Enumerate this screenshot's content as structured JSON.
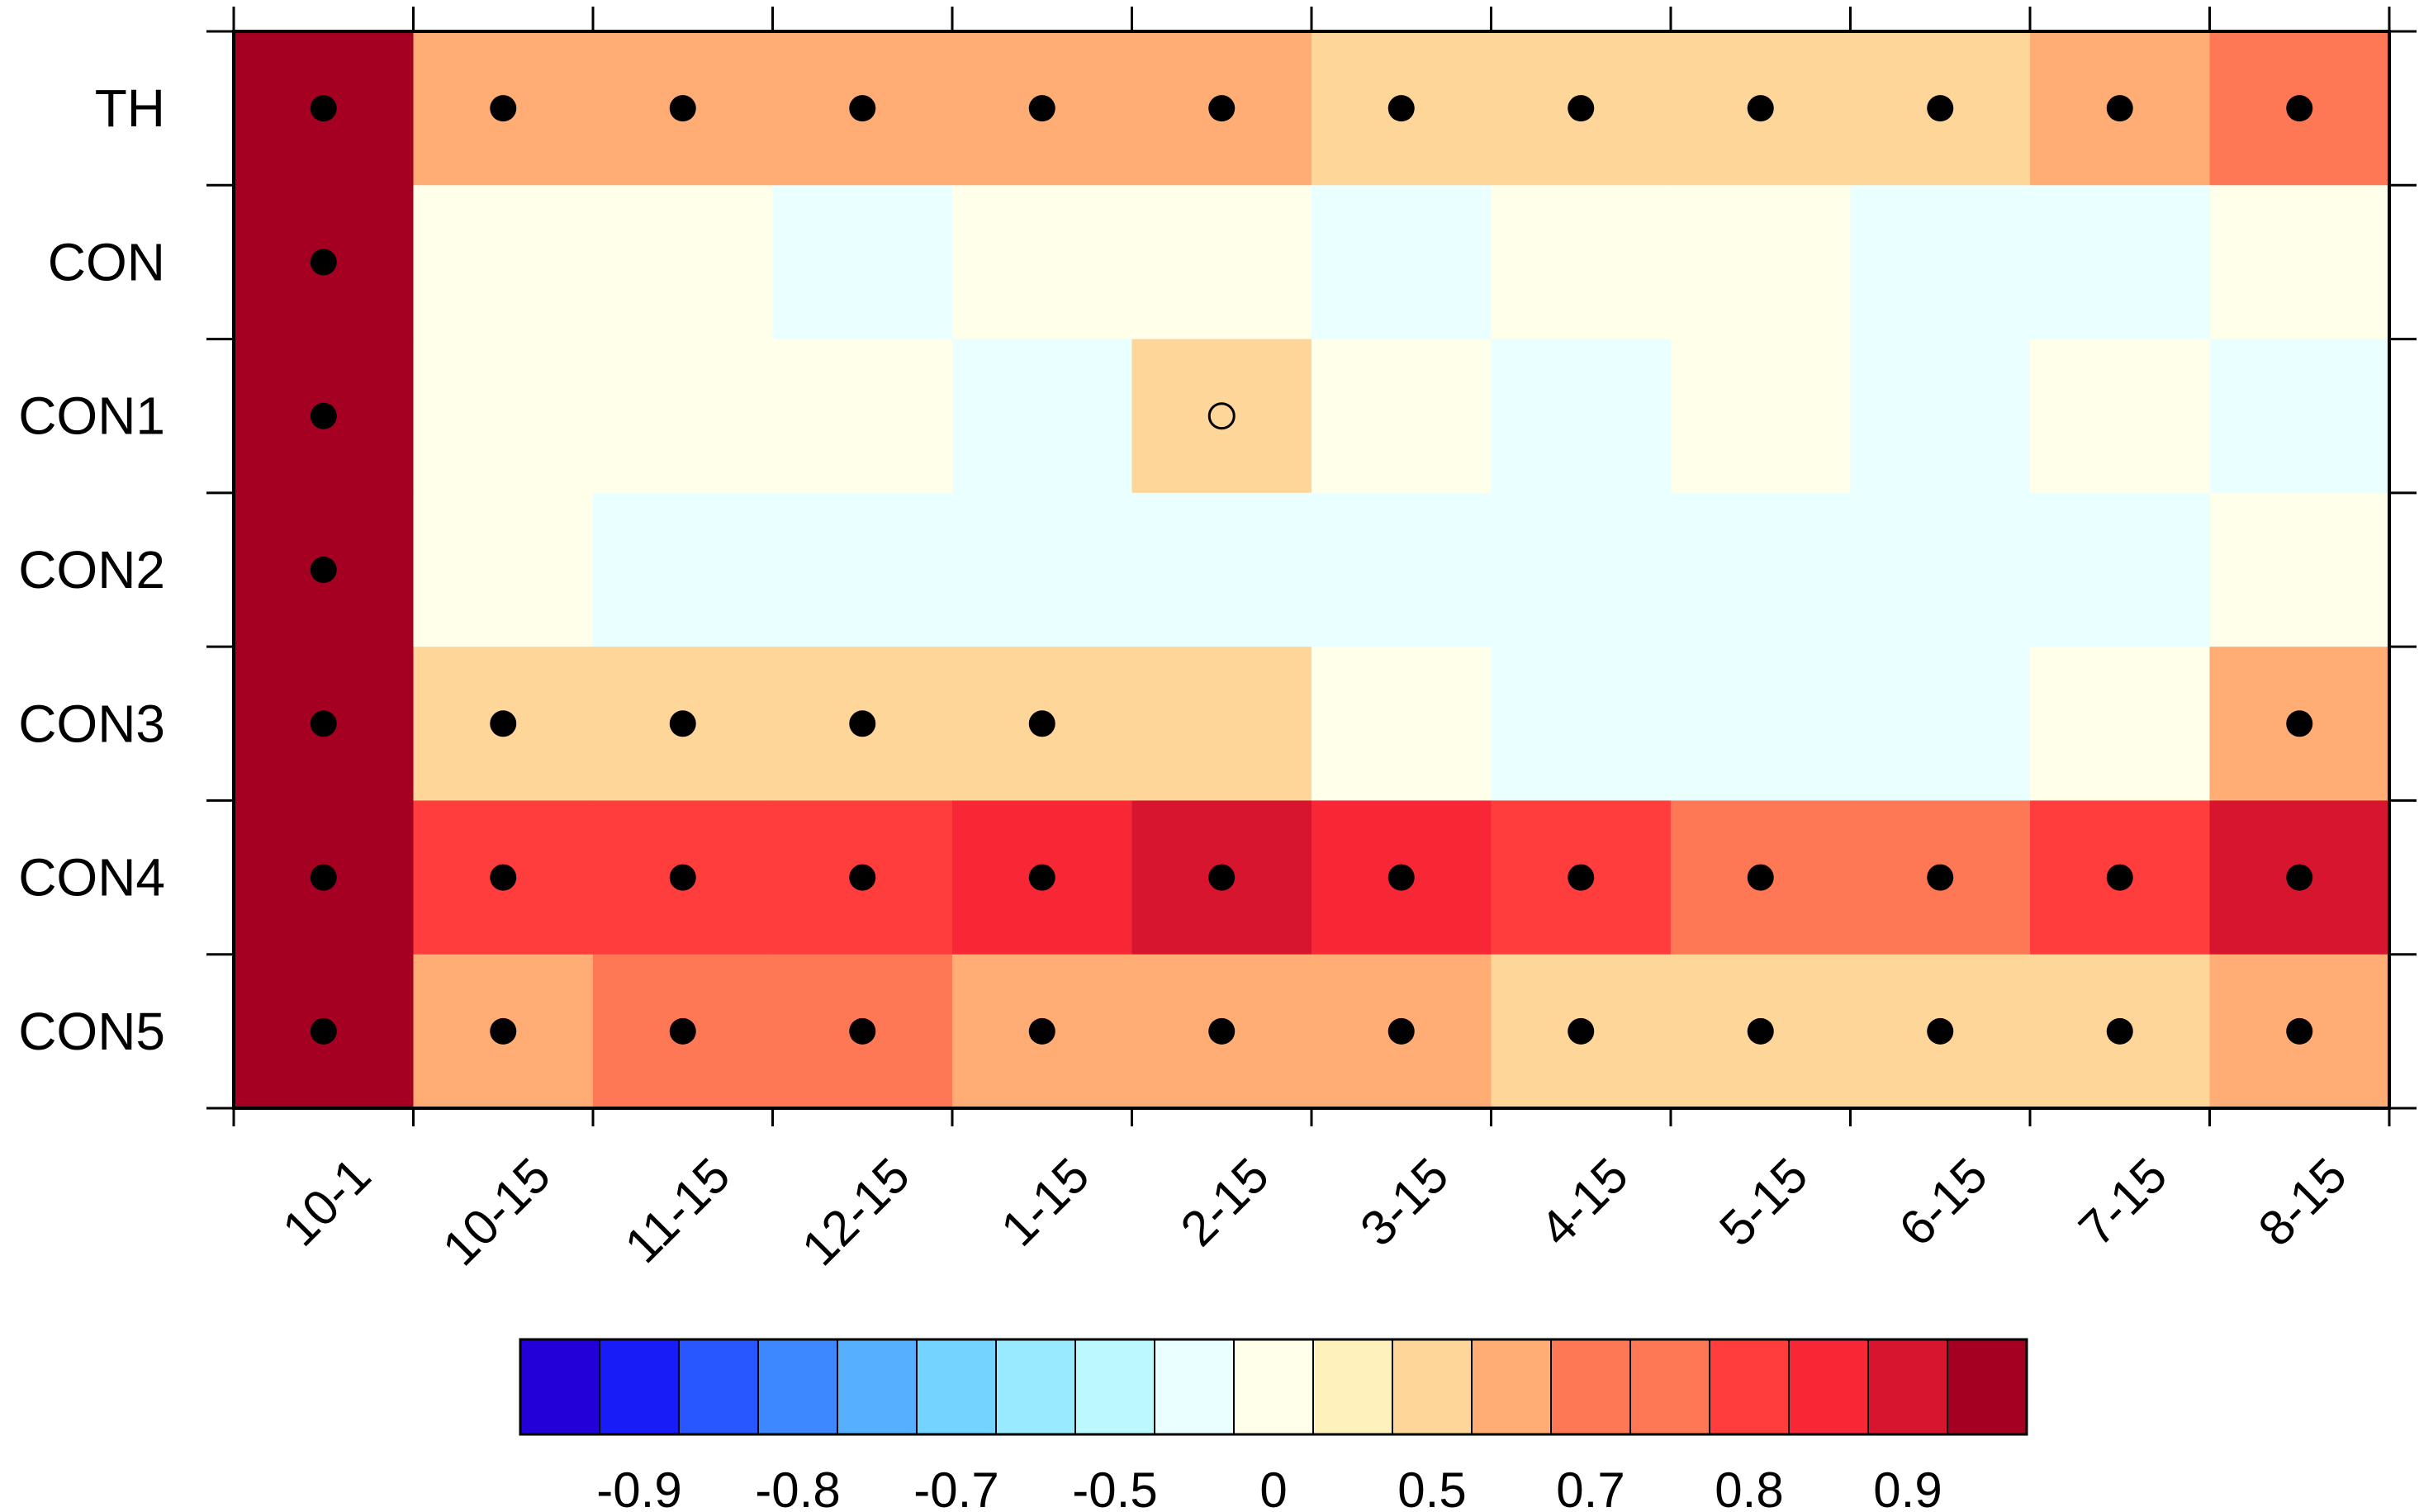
{
  "chart_data": {
    "type": "heatmap",
    "title": "",
    "xlabel": "",
    "ylabel": "",
    "x_categories": [
      "10-1",
      "10-15",
      "11-15",
      "12-15",
      "1-15",
      "2-15",
      "3-15",
      "4-15",
      "5-15",
      "6-15",
      "7-15",
      "8-15"
    ],
    "y_categories": [
      "TH",
      "CON",
      "CON1",
      "CON2",
      "CON3",
      "CON4",
      "CON5"
    ],
    "values": [
      [
        0.97,
        0.65,
        0.65,
        0.65,
        0.65,
        0.65,
        0.55,
        0.55,
        0.55,
        0.55,
        0.65,
        0.75
      ],
      [
        0.97,
        0.25,
        0.25,
        -0.25,
        0.25,
        0.25,
        -0.25,
        0.25,
        0.25,
        -0.25,
        -0.25,
        0.25
      ],
      [
        0.97,
        0.25,
        0.25,
        0.25,
        -0.25,
        0.55,
        0.25,
        -0.25,
        0.25,
        -0.25,
        0.25,
        -0.25
      ],
      [
        0.97,
        0.25,
        -0.25,
        -0.45,
        -0.25,
        -0.25,
        -0.25,
        -0.25,
        -0.25,
        -0.25,
        -0.45,
        0.25
      ],
      [
        0.97,
        0.55,
        0.55,
        0.55,
        0.55,
        0.55,
        0.25,
        -0.25,
        -0.45,
        -0.45,
        0.25,
        0.65
      ],
      [
        0.97,
        0.825,
        0.825,
        0.825,
        0.875,
        0.925,
        0.875,
        0.825,
        0.75,
        0.75,
        0.825,
        0.925
      ],
      [
        0.97,
        0.65,
        0.75,
        0.75,
        0.65,
        0.65,
        0.65,
        0.55,
        0.55,
        0.55,
        0.55,
        0.65
      ]
    ],
    "markers": [
      [
        "filled",
        "filled",
        "filled",
        "filled",
        "filled",
        "filled",
        "filled",
        "filled",
        "filled",
        "filled",
        "filled",
        "filled"
      ],
      [
        "filled",
        "none",
        "none",
        "none",
        "none",
        "none",
        "none",
        "none",
        "none",
        "none",
        "none",
        "none"
      ],
      [
        "filled",
        "none",
        "none",
        "none",
        "none",
        "open",
        "none",
        "none",
        "none",
        "none",
        "none",
        "none"
      ],
      [
        "filled",
        "none",
        "none",
        "none",
        "none",
        "none",
        "none",
        "none",
        "none",
        "none",
        "none",
        "none"
      ],
      [
        "filled",
        "filled",
        "filled",
        "filled",
        "filled",
        "none",
        "none",
        "none",
        "none",
        "none",
        "none",
        "filled"
      ],
      [
        "filled",
        "filled",
        "filled",
        "filled",
        "filled",
        "filled",
        "filled",
        "filled",
        "filled",
        "filled",
        "filled",
        "filled"
      ],
      [
        "filled",
        "filled",
        "filled",
        "filled",
        "filled",
        "filled",
        "filled",
        "filled",
        "filled",
        "filled",
        "filled",
        "filled"
      ]
    ],
    "colorbar": {
      "colors": [
        "#2400d8",
        "#181cf7",
        "#2857ff",
        "#3d87ff",
        "#56b0ff",
        "#75d3ff",
        "#99eaff",
        "#bcf9ff",
        "#eaffff",
        "#ffffea",
        "#fff1bc",
        "#ffd699",
        "#ffac75",
        "#ff7856",
        "#ff7856",
        "#ff3d3d",
        "#f72735",
        "#d8152f",
        "#a50021"
      ],
      "tick_labels": [
        "-0.9",
        "-0.8",
        "-0.7",
        "-0.5",
        "0",
        "0.5",
        "0.7",
        "0.8",
        "0.9"
      ],
      "tick_box_index": [
        1,
        3,
        5,
        7,
        9,
        11,
        13,
        15,
        17
      ]
    },
    "grid": false,
    "legend": "bottom"
  }
}
